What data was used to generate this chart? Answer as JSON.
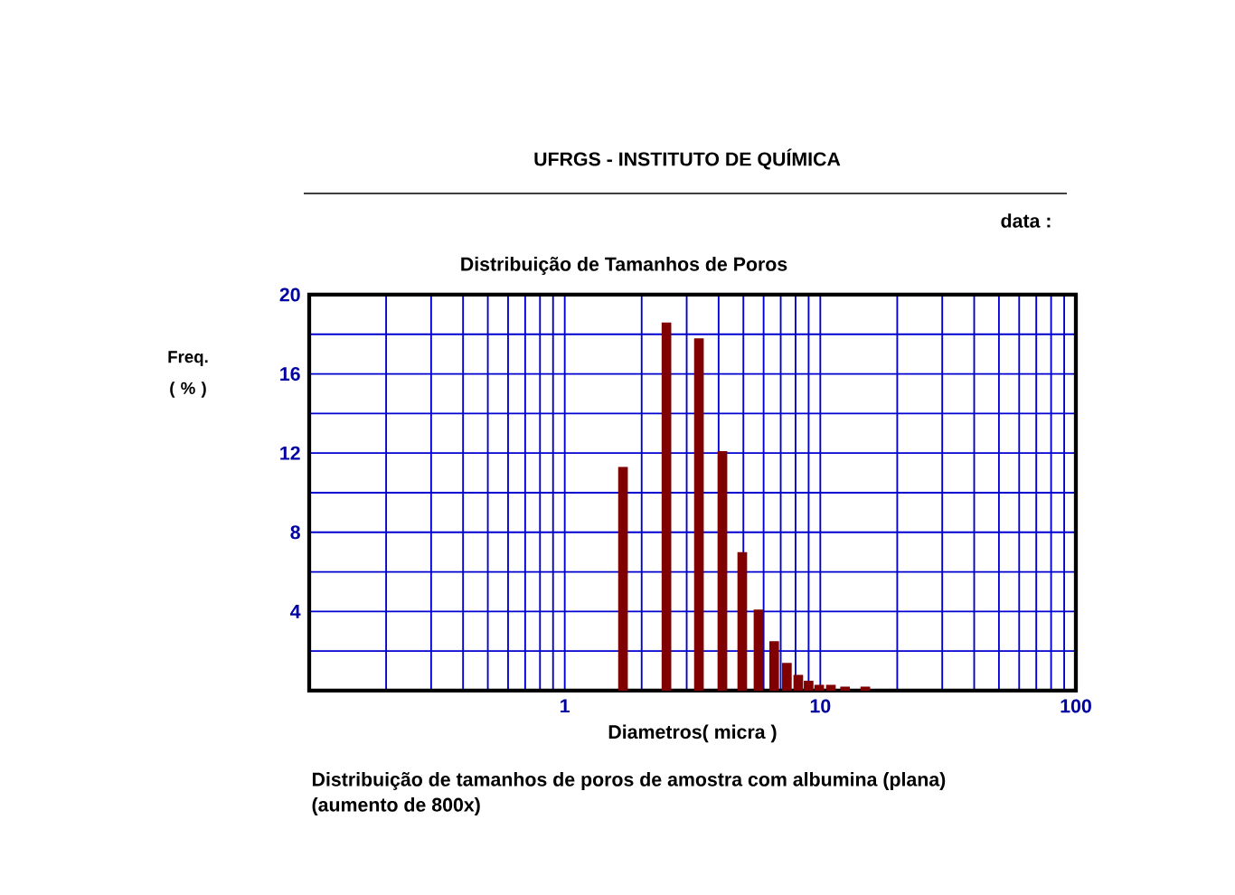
{
  "chart_data": {
    "type": "bar",
    "title": "Distribuição de Tamanhos de Poros",
    "xlabel": "Diametros( micra )",
    "ylabel": "Freq. ( % )",
    "x": [
      1.69,
      2.5,
      3.35,
      4.14,
      4.95,
      5.73,
      6.6,
      7.4,
      8.2,
      9.0,
      9.9,
      11,
      12.5,
      15
    ],
    "values": [
      11.3,
      18.6,
      17.8,
      12.1,
      7.0,
      4.1,
      2.5,
      1.4,
      0.8,
      0.5,
      0.3,
      0.3,
      0.2,
      0.2
    ],
    "color": "#800000",
    "log": "x",
    "xlim": [
      0.1,
      100
    ],
    "xticks": [
      {
        "value": 0.1,
        "label": null
      },
      1,
      10,
      100
    ],
    "ylim": [
      0,
      20
    ],
    "yticks": [
      {
        "value": 2,
        "label": null
      },
      4,
      {
        "value": 6,
        "label": null
      },
      8,
      {
        "value": 10,
        "label": null
      },
      12,
      {
        "value": 14,
        "label": null
      },
      16,
      {
        "value": 18,
        "label": null
      },
      20
    ],
    "grid": true,
    "annotations": [
      "UFRGS - INSTITUTO DE QUÍMICA",
      "data :",
      "Distribuição de tamanhos de poros de amostra com albumina (plana)",
      "(aumento de 800x)"
    ]
  }
}
